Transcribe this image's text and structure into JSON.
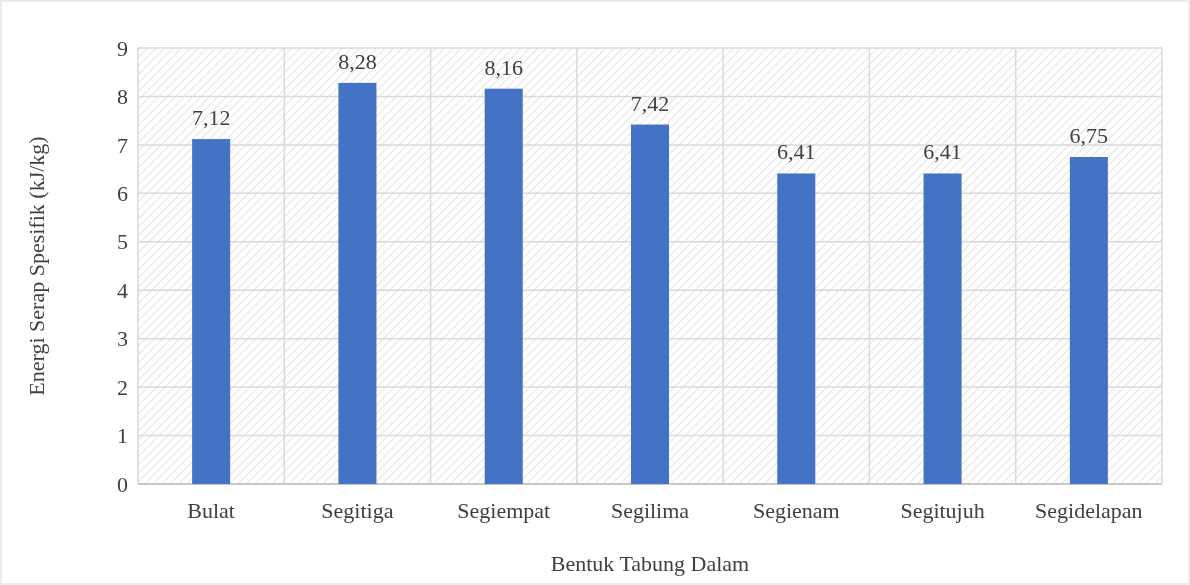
{
  "chart_data": {
    "type": "bar",
    "xlabel": "Bentuk Tabung Dalam",
    "ylabel": "Energi Serap Spesifik (kJ/kg)",
    "categories": [
      "Bulat",
      "Segitiga",
      "Segiempat",
      "Segilima",
      "Segienam",
      "Segitujuh",
      "Segidelapan"
    ],
    "values": [
      7.12,
      8.28,
      8.16,
      7.42,
      6.41,
      6.41,
      6.75
    ],
    "value_labels": [
      "7,12",
      "8,28",
      "8,16",
      "7,42",
      "6,41",
      "6,41",
      "6,75"
    ],
    "color": "#4472c4",
    "ylim": [
      0,
      9
    ],
    "yticks": [
      0,
      1,
      2,
      3,
      4,
      5,
      6,
      7,
      8,
      9
    ],
    "grid": true
  }
}
